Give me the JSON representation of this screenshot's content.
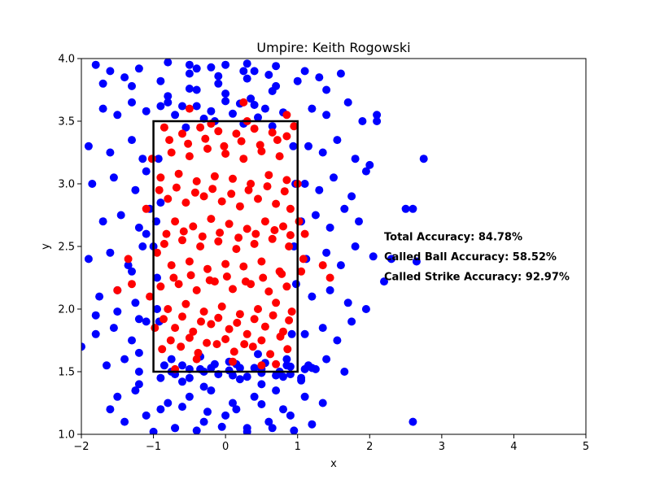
{
  "chart_data": {
    "type": "scatter",
    "title": "Umpire: Keith Rogowski",
    "xlabel": "x",
    "ylabel": "y",
    "xlim": [
      -2,
      5
    ],
    "ylim": [
      1.0,
      4.0
    ],
    "xticks": [
      -2,
      -1,
      0,
      1,
      2,
      3,
      4,
      5
    ],
    "yticks": [
      1.0,
      1.5,
      2.0,
      2.5,
      3.0,
      3.5,
      4.0
    ],
    "xtick_labels": [
      "−2",
      "−1",
      "0",
      "1",
      "2",
      "3",
      "4",
      "5"
    ],
    "ytick_labels": [
      "1.0",
      "1.5",
      "2.0",
      "2.5",
      "3.0",
      "3.5",
      "4.0"
    ],
    "grid": false,
    "strike_zone": {
      "x": [
        -1,
        1
      ],
      "y": [
        1.5,
        3.5
      ],
      "color": "#000000"
    },
    "annotations": [
      {
        "text": "Total Accuracy: 84.78%",
        "x": 2.2,
        "y": 2.55
      },
      {
        "text": "Called Ball Accuracy: 58.52%",
        "x": 2.2,
        "y": 2.39
      },
      {
        "text": "Called Strike Accuracy: 92.97%",
        "x": 2.2,
        "y": 2.23
      }
    ],
    "series": [
      {
        "color": "#0000ff",
        "x": [
          -1.8,
          -1.6,
          -1.4,
          -1.2,
          -0.8,
          -0.5,
          -0.2,
          0.3,
          0.7,
          1.1,
          1.3,
          1.6,
          -1.7,
          -1.5,
          -1.3,
          -1.1,
          -0.9,
          1.2,
          1.4,
          1.7,
          1.9,
          2.1,
          -1.9,
          -1.6,
          -1.3,
          -1.15,
          1.15,
          1.35,
          1.55,
          1.8,
          2.0,
          -1.85,
          -1.55,
          -1.25,
          -1.1,
          1.1,
          1.3,
          1.5,
          1.75,
          1.95,
          -1.7,
          -1.45,
          -1.2,
          -1.05,
          1.05,
          1.25,
          1.45,
          1.65,
          1.85,
          -1.9,
          -1.6,
          -1.35,
          -1.15,
          1.12,
          1.4,
          1.6,
          1.8,
          2.05,
          -1.75,
          -1.5,
          -1.25,
          1.2,
          1.45,
          1.7,
          1.95,
          -1.8,
          -1.55,
          -1.3,
          -1.1,
          1.1,
          1.35,
          1.55,
          1.75,
          -1.65,
          -1.4,
          -1.2,
          1.15,
          1.4,
          1.65,
          -1.5,
          -1.25,
          -0.8,
          -0.5,
          -0.2,
          0.1,
          0.4,
          0.7,
          1.1,
          1.35,
          -1.4,
          -1.1,
          -0.7,
          -0.3,
          0.0,
          0.3,
          0.6,
          0.9,
          1.2,
          -1.6,
          -1.2,
          -0.9,
          -0.6,
          -0.3,
          0.2,
          0.5,
          0.8,
          1.05,
          -0.8,
          -0.4,
          0.0,
          0.35,
          0.65,
          -1.7,
          -1.3,
          -0.9,
          -0.5,
          -0.1,
          0.3,
          0.7,
          1.0,
          1.4,
          -0.6,
          -0.2,
          0.2,
          0.55,
          -1.2,
          -0.75,
          -0.35,
          0.05,
          0.45,
          0.85,
          -0.9,
          -0.6,
          -0.25,
          0.15,
          0.5,
          0.8,
          -1.0,
          -0.7,
          -0.4,
          -0.05,
          0.3,
          0.65,
          0.95,
          -0.5,
          -0.1,
          0.25,
          0.6,
          -1.8,
          -1.5,
          -1.2,
          -0.85,
          -0.5,
          -0.15,
          0.2,
          0.55,
          0.9,
          1.25,
          -0.7,
          -0.3,
          0.1,
          0.45,
          0.8,
          -1.3,
          -0.95,
          -0.6,
          -0.2,
          0.15,
          0.5,
          0.85,
          1.2,
          -0.8,
          -0.4,
          0.0,
          0.4,
          -1.1,
          -0.75,
          -0.35,
          0.05,
          0.4,
          0.75,
          1.1,
          -0.55,
          -0.15,
          0.25,
          0.65,
          -0.9,
          -0.5,
          -0.1,
          0.3,
          0.7,
          1.05,
          -0.4,
          0.0,
          0.4,
          -0.7,
          -0.3,
          0.1,
          0.5,
          0.9,
          -1.0,
          -0.95,
          0.95,
          0.97,
          -0.93,
          0.92,
          -0.96,
          0.98,
          -0.92,
          0.94,
          2.3,
          2.2,
          2.1,
          2.65,
          2.6,
          2.6,
          2.75,
          -2.0,
          2.5
        ],
        "y": [
          3.95,
          3.9,
          3.85,
          3.92,
          3.97,
          3.95,
          3.93,
          3.96,
          3.94,
          3.9,
          3.85,
          3.88,
          3.6,
          3.55,
          3.65,
          3.58,
          3.62,
          3.6,
          3.55,
          3.65,
          3.5,
          3.55,
          3.3,
          3.25,
          3.35,
          3.2,
          3.3,
          3.25,
          3.35,
          3.2,
          3.15,
          3.0,
          3.05,
          2.95,
          3.1,
          3.0,
          2.95,
          3.05,
          2.9,
          3.1,
          2.7,
          2.75,
          2.65,
          2.8,
          2.7,
          2.75,
          2.65,
          2.8,
          2.7,
          2.4,
          2.45,
          2.35,
          2.5,
          2.4,
          2.45,
          2.35,
          2.5,
          2.42,
          2.1,
          2.15,
          2.05,
          2.1,
          2.15,
          2.05,
          2.0,
          1.8,
          1.85,
          1.75,
          1.9,
          1.8,
          1.85,
          1.75,
          1.9,
          1.55,
          1.6,
          1.5,
          1.55,
          1.6,
          1.5,
          1.3,
          1.35,
          1.25,
          1.3,
          1.35,
          1.25,
          1.3,
          1.35,
          1.3,
          1.25,
          1.1,
          1.15,
          1.05,
          1.1,
          1.15,
          1.05,
          1.1,
          1.15,
          1.08,
          1.2,
          1.4,
          1.45,
          1.42,
          1.38,
          1.44,
          1.4,
          1.46,
          1.43,
          3.7,
          3.75,
          3.72,
          3.68,
          3.74,
          3.8,
          3.78,
          3.82,
          3.76,
          3.8,
          3.84,
          3.78,
          3.82,
          3.75,
          3.62,
          3.58,
          3.64,
          3.6,
          1.65,
          1.6,
          1.62,
          1.58,
          1.64,
          1.6,
          1.2,
          1.22,
          1.18,
          1.2,
          1.24,
          1.2,
          1.02,
          1.05,
          1.03,
          1.06,
          1.02,
          1.05,
          1.03,
          3.88,
          3.86,
          3.9,
          3.87,
          1.95,
          1.98,
          1.92,
          1.55,
          1.52,
          1.56,
          1.53,
          1.57,
          1.54,
          1.52,
          3.55,
          3.52,
          3.56,
          3.53,
          3.57,
          2.3,
          2.25,
          1.55,
          1.53,
          1.56,
          1.52,
          1.55,
          1.53,
          3.65,
          3.62,
          3.66,
          3.63,
          2.6,
          1.5,
          1.52,
          1.51,
          1.53,
          1.5,
          1.52,
          3.45,
          3.5,
          3.48,
          3.46,
          2.85,
          1.45,
          1.48,
          1.46,
          1.47,
          1.45,
          3.92,
          3.95,
          3.9,
          1.48,
          1.5,
          1.47,
          1.49,
          1.48,
          2.5,
          2.0,
          2.5,
          3.0,
          3.2,
          1.8,
          2.7,
          2.2,
          1.9,
          3.3,
          2.4,
          2.22,
          3.5,
          2.38,
          2.8,
          1.1,
          3.2,
          1.7,
          2.8
        ]
      },
      {
        "color": "#ff0000",
        "x": [
          -0.85,
          -0.6,
          -0.35,
          -0.1,
          0.15,
          0.4,
          0.65,
          0.85,
          -0.75,
          -0.5,
          -0.25,
          0.0,
          0.25,
          0.5,
          0.75,
          -0.9,
          -0.65,
          -0.4,
          -0.15,
          0.1,
          0.35,
          0.6,
          0.85,
          -0.8,
          -0.55,
          -0.3,
          -0.05,
          0.2,
          0.45,
          0.7,
          0.9,
          -0.7,
          -0.45,
          -0.2,
          0.05,
          0.3,
          0.55,
          0.8,
          -0.85,
          -0.6,
          -0.35,
          -0.1,
          0.15,
          0.4,
          0.65,
          0.88,
          -0.75,
          -0.5,
          -0.25,
          0.0,
          0.25,
          0.5,
          0.75,
          -0.9,
          -0.65,
          -0.4,
          -0.15,
          0.1,
          0.35,
          0.6,
          0.85,
          -0.8,
          -0.55,
          -0.3,
          -0.05,
          0.2,
          0.45,
          0.7,
          0.92,
          -0.7,
          -0.45,
          -0.2,
          0.05,
          0.3,
          0.55,
          0.8,
          -0.88,
          -0.62,
          -0.38,
          -0.12,
          0.12,
          0.38,
          0.62,
          0.86,
          -0.78,
          -0.52,
          -0.28,
          -0.02,
          0.22,
          0.48,
          0.72,
          -0.92,
          -0.68,
          -0.42,
          -0.18,
          0.08,
          0.32,
          0.58,
          0.82,
          -0.82,
          -0.58,
          -0.32,
          -0.08,
          0.18,
          0.42,
          0.68,
          0.9,
          -0.72,
          -0.48,
          -0.22,
          0.02,
          0.28,
          0.52,
          0.78,
          -0.86,
          -0.6,
          -0.34,
          -0.1,
          0.16,
          0.4,
          0.66,
          0.88,
          -0.76,
          -0.5,
          -0.26,
          0.0,
          0.26,
          0.5,
          0.76,
          -0.95,
          1.05,
          1.1,
          -1.05,
          1.0,
          -1.1,
          1.08,
          -0.98,
          1.02,
          -1.02,
          -0.7,
          0.5,
          0.1,
          -0.4,
          0.7,
          -0.2,
          0.3,
          0.95,
          -0.5,
          0.85,
          -1.3,
          -1.5,
          1.35,
          1.45,
          -1.35,
          0.25
        ],
        "y": [
          3.45,
          3.4,
          3.45,
          3.42,
          3.4,
          3.44,
          3.41,
          3.38,
          3.25,
          3.22,
          3.28,
          3.24,
          3.2,
          3.26,
          3.22,
          3.05,
          3.08,
          3.02,
          3.06,
          3.04,
          3.0,
          3.07,
          3.03,
          2.88,
          2.85,
          2.9,
          2.86,
          2.82,
          2.88,
          2.84,
          2.8,
          2.7,
          2.66,
          2.72,
          2.68,
          2.64,
          2.7,
          2.66,
          2.52,
          2.55,
          2.5,
          2.54,
          2.48,
          2.52,
          2.56,
          2.5,
          2.35,
          2.38,
          2.32,
          2.36,
          2.34,
          2.38,
          2.3,
          2.18,
          2.2,
          2.15,
          2.22,
          2.16,
          2.2,
          2.14,
          2.18,
          2.0,
          2.04,
          1.98,
          2.02,
          1.96,
          2.0,
          2.05,
          1.98,
          1.85,
          1.82,
          1.88,
          1.84,
          1.8,
          1.86,
          1.82,
          1.68,
          1.7,
          1.65,
          1.72,
          1.66,
          1.7,
          1.64,
          1.68,
          3.35,
          3.32,
          3.36,
          3.3,
          3.34,
          3.31,
          3.35,
          2.95,
          2.97,
          2.93,
          2.96,
          2.92,
          2.95,
          2.98,
          2.94,
          2.6,
          2.62,
          2.58,
          2.61,
          2.57,
          2.6,
          2.63,
          2.59,
          2.25,
          2.27,
          2.23,
          2.26,
          2.22,
          2.25,
          2.28,
          1.92,
          1.94,
          1.9,
          1.93,
          1.89,
          1.92,
          1.95,
          1.91,
          1.75,
          1.77,
          1.73,
          1.76,
          1.72,
          1.75,
          1.78,
          2.45,
          2.3,
          2.6,
          2.1,
          3.0,
          2.8,
          2.4,
          1.85,
          2.7,
          3.2,
          1.52,
          1.55,
          1.58,
          1.6,
          1.56,
          3.48,
          3.5,
          3.46,
          3.6,
          3.55,
          2.2,
          2.15,
          2.35,
          2.25,
          2.4,
          3.65
        ],
        "name": ""
      }
    ]
  }
}
